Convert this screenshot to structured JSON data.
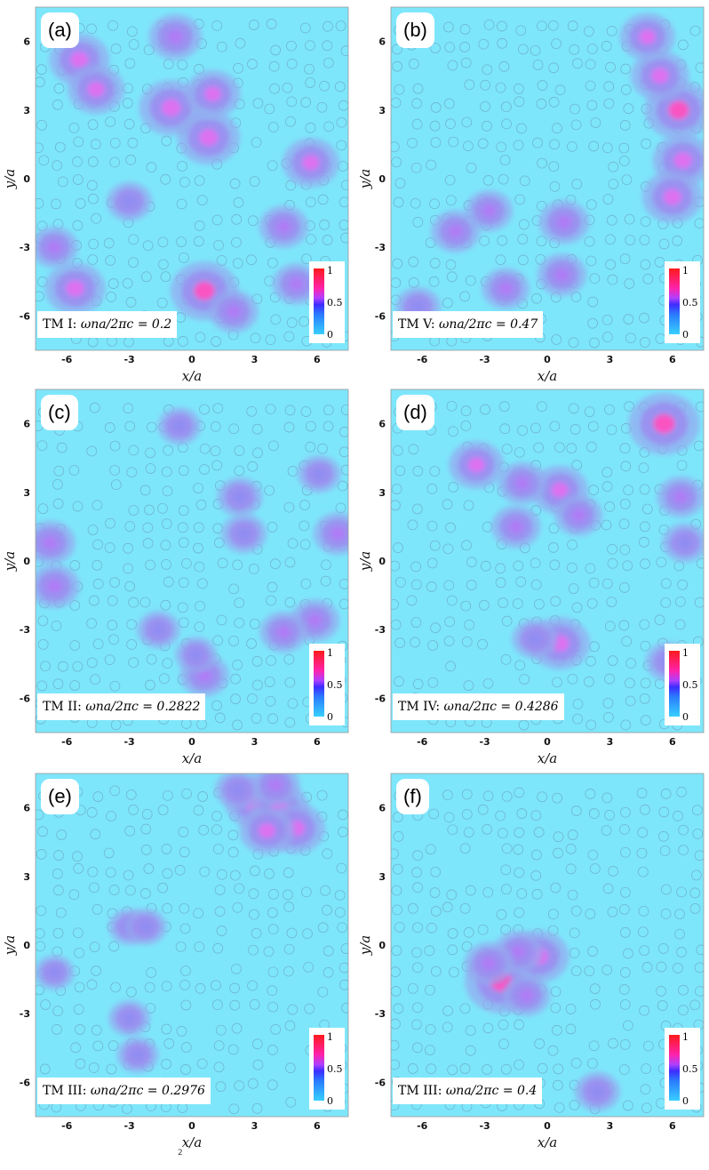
{
  "chart_data": [
    {
      "type": "heatmap",
      "panel_tag": "(a)",
      "mode_prefix": "TM I: ",
      "mode_formula": "ωna/2πc = 0.2",
      "xlabel": "x/a",
      "ylabel": "y/a",
      "xticks": [
        "-6",
        "-3",
        "0",
        "3",
        "6"
      ],
      "yticks": [
        "6",
        "3",
        "0",
        "-3",
        "-6"
      ],
      "xlim": [
        -7.5,
        7.5
      ],
      "ylim": [
        -7.5,
        7.5
      ],
      "colorbar": {
        "ticks": [
          "1",
          "0.5",
          "0"
        ]
      },
      "hotspots": [
        {
          "x": 0.6,
          "y": -4.9,
          "v": 0.55
        },
        {
          "x": -1.0,
          "y": 3.1,
          "v": 0.5
        },
        {
          "x": 0.8,
          "y": 1.8,
          "v": 0.48
        },
        {
          "x": -5.4,
          "y": 5.2,
          "v": 0.45
        },
        {
          "x": -4.6,
          "y": 3.9,
          "v": 0.4
        },
        {
          "x": -5.6,
          "y": -4.8,
          "v": 0.45
        },
        {
          "x": 5.7,
          "y": 0.7,
          "v": 0.4
        },
        {
          "x": 1.0,
          "y": 3.7,
          "v": 0.38
        },
        {
          "x": -0.8,
          "y": 6.2,
          "v": 0.35
        },
        {
          "x": 4.4,
          "y": -2.1,
          "v": 0.3
        },
        {
          "x": -6.6,
          "y": -3.0,
          "v": 0.28
        },
        {
          "x": 2.0,
          "y": -5.8,
          "v": 0.3
        },
        {
          "x": -3.0,
          "y": -1.0,
          "v": 0.25
        },
        {
          "x": 5.0,
          "y": -4.6,
          "v": 0.28
        }
      ]
    },
    {
      "type": "heatmap",
      "panel_tag": "(b)",
      "mode_prefix": "TM V: ",
      "mode_formula": "ωna/2πc = 0.47",
      "xlabel": "x/a",
      "ylabel": "y/a",
      "xticks": [
        "-6",
        "-3",
        "0",
        "3",
        "6"
      ],
      "yticks": [
        "6",
        "3",
        "0",
        "-3",
        "-6"
      ],
      "xlim": [
        -7.5,
        7.5
      ],
      "ylim": [
        -7.5,
        7.5
      ],
      "colorbar": {
        "ticks": [
          "1",
          "0.5",
          "0"
        ]
      },
      "hotspots": [
        {
          "x": 6.3,
          "y": 3.0,
          "v": 0.55
        },
        {
          "x": 6.5,
          "y": 0.8,
          "v": 0.45
        },
        {
          "x": 6.0,
          "y": -0.8,
          "v": 0.45
        },
        {
          "x": 5.4,
          "y": 4.5,
          "v": 0.42
        },
        {
          "x": 4.8,
          "y": 6.2,
          "v": 0.38
        },
        {
          "x": 0.8,
          "y": -1.9,
          "v": 0.32
        },
        {
          "x": -4.4,
          "y": -2.3,
          "v": 0.3
        },
        {
          "x": -2.8,
          "y": -1.4,
          "v": 0.28
        },
        {
          "x": 0.7,
          "y": -4.2,
          "v": 0.3
        },
        {
          "x": -2.0,
          "y": -4.8,
          "v": 0.28
        },
        {
          "x": -6.2,
          "y": -5.6,
          "v": 0.25
        }
      ]
    },
    {
      "type": "heatmap",
      "panel_tag": "(c)",
      "mode_prefix": "TM II: ",
      "mode_formula": "ωna/2πc = 0.2822",
      "xlabel": "x/a",
      "ylabel": "y/a",
      "xticks": [
        "-6",
        "-3",
        "0",
        "3",
        "6"
      ],
      "yticks": [
        "6",
        "3",
        "0",
        "-3",
        "-6"
      ],
      "xlim": [
        -7.5,
        7.5
      ],
      "ylim": [
        -7.5,
        7.5
      ],
      "colorbar": {
        "ticks": [
          "1",
          "0.5",
          "0"
        ]
      },
      "hotspots": [
        {
          "x": -6.8,
          "y": 0.8,
          "v": 0.32
        },
        {
          "x": -6.6,
          "y": -1.1,
          "v": 0.32
        },
        {
          "x": 7.0,
          "y": 1.2,
          "v": 0.3
        },
        {
          "x": 0.6,
          "y": -5.0,
          "v": 0.3
        },
        {
          "x": 5.9,
          "y": -2.6,
          "v": 0.3
        },
        {
          "x": 4.4,
          "y": -3.1,
          "v": 0.28
        },
        {
          "x": 2.5,
          "y": 1.2,
          "v": 0.25
        },
        {
          "x": 2.3,
          "y": 2.8,
          "v": 0.25
        },
        {
          "x": -1.6,
          "y": -3.0,
          "v": 0.22
        },
        {
          "x": -0.6,
          "y": 5.9,
          "v": 0.22
        },
        {
          "x": 6.1,
          "y": 3.8,
          "v": 0.22
        },
        {
          "x": 0.2,
          "y": -4.1,
          "v": 0.2
        }
      ]
    },
    {
      "type": "heatmap",
      "panel_tag": "(d)",
      "mode_prefix": "TM IV: ",
      "mode_formula": "ωna/2πc = 0.4286",
      "xlabel": "x/a",
      "ylabel": "y/a",
      "xticks": [
        "-6",
        "-3",
        "0",
        "3",
        "6"
      ],
      "yticks": [
        "6",
        "3",
        "0",
        "-3",
        "-6"
      ],
      "xlim": [
        -7.5,
        7.5
      ],
      "ylim": [
        -7.5,
        7.5
      ],
      "colorbar": {
        "ticks": [
          "1",
          "0.5",
          "0"
        ]
      },
      "hotspots": [
        {
          "x": 5.6,
          "y": 6.0,
          "v": 0.6
        },
        {
          "x": 0.6,
          "y": -3.6,
          "v": 0.45
        },
        {
          "x": 0.6,
          "y": 3.1,
          "v": 0.4
        },
        {
          "x": -3.4,
          "y": 4.2,
          "v": 0.38
        },
        {
          "x": -1.2,
          "y": 3.4,
          "v": 0.3
        },
        {
          "x": 1.5,
          "y": 2.0,
          "v": 0.28
        },
        {
          "x": -1.5,
          "y": 1.5,
          "v": 0.3
        },
        {
          "x": 6.4,
          "y": 2.8,
          "v": 0.28
        },
        {
          "x": 6.6,
          "y": 0.8,
          "v": 0.25
        },
        {
          "x": -0.6,
          "y": -3.4,
          "v": 0.25
        },
        {
          "x": 5.8,
          "y": -4.4,
          "v": 0.25
        }
      ]
    },
    {
      "type": "heatmap",
      "panel_tag": "(e)",
      "mode_prefix": "TM III: ",
      "mode_formula": "ωna/2πc = 0.2976",
      "xlabel": "x/a",
      "ylabel": "y/a",
      "xticks": [
        "-6",
        "-3",
        "0",
        "3",
        "6"
      ],
      "yticks": [
        "6",
        "3",
        "0",
        "-3",
        "-6"
      ],
      "xlim": [
        -7.5,
        7.5
      ],
      "ylim": [
        -7.5,
        7.5
      ],
      "colorbar": {
        "ticks": [
          "1",
          "0.5",
          "0"
        ]
      },
      "hotspots": [
        {
          "x": 3.0,
          "y": 6.2,
          "v": 0.42
        },
        {
          "x": 4.2,
          "y": 6.0,
          "v": 0.42
        },
        {
          "x": 5.0,
          "y": 5.1,
          "v": 0.42
        },
        {
          "x": 3.6,
          "y": 5.0,
          "v": 0.38
        },
        {
          "x": 4.0,
          "y": 7.0,
          "v": 0.3
        },
        {
          "x": 2.2,
          "y": 6.8,
          "v": 0.25
        },
        {
          "x": -3.0,
          "y": 0.8,
          "v": 0.2
        },
        {
          "x": -2.2,
          "y": 0.8,
          "v": 0.2
        },
        {
          "x": -3.0,
          "y": -3.2,
          "v": 0.2
        },
        {
          "x": -2.6,
          "y": -4.8,
          "v": 0.2
        },
        {
          "x": -6.6,
          "y": -1.2,
          "v": 0.18
        }
      ]
    },
    {
      "type": "heatmap",
      "panel_tag": "(f)",
      "mode_prefix": "TM III: ",
      "mode_formula": "ωna/2πc = 0.4",
      "xlabel": "x/a",
      "ylabel": "y/a",
      "xticks": [
        "-6",
        "-3",
        "0",
        "3",
        "6"
      ],
      "yticks": [
        "6",
        "3",
        "0",
        "-3",
        "-6"
      ],
      "xlim": [
        -7.5,
        7.5
      ],
      "ylim": [
        -7.5,
        7.5
      ],
      "colorbar": {
        "ticks": [
          "1",
          "0.5",
          "0"
        ]
      },
      "hotspots": [
        {
          "x": -2.2,
          "y": -1.6,
          "v": 0.62
        },
        {
          "x": -0.4,
          "y": -0.5,
          "v": 0.45
        },
        {
          "x": -1.4,
          "y": -0.3,
          "v": 0.3
        },
        {
          "x": -2.8,
          "y": -0.8,
          "v": 0.3
        },
        {
          "x": -1.0,
          "y": -2.2,
          "v": 0.28
        },
        {
          "x": 2.4,
          "y": -6.4,
          "v": 0.25
        }
      ]
    }
  ],
  "footer_glyph": "2"
}
